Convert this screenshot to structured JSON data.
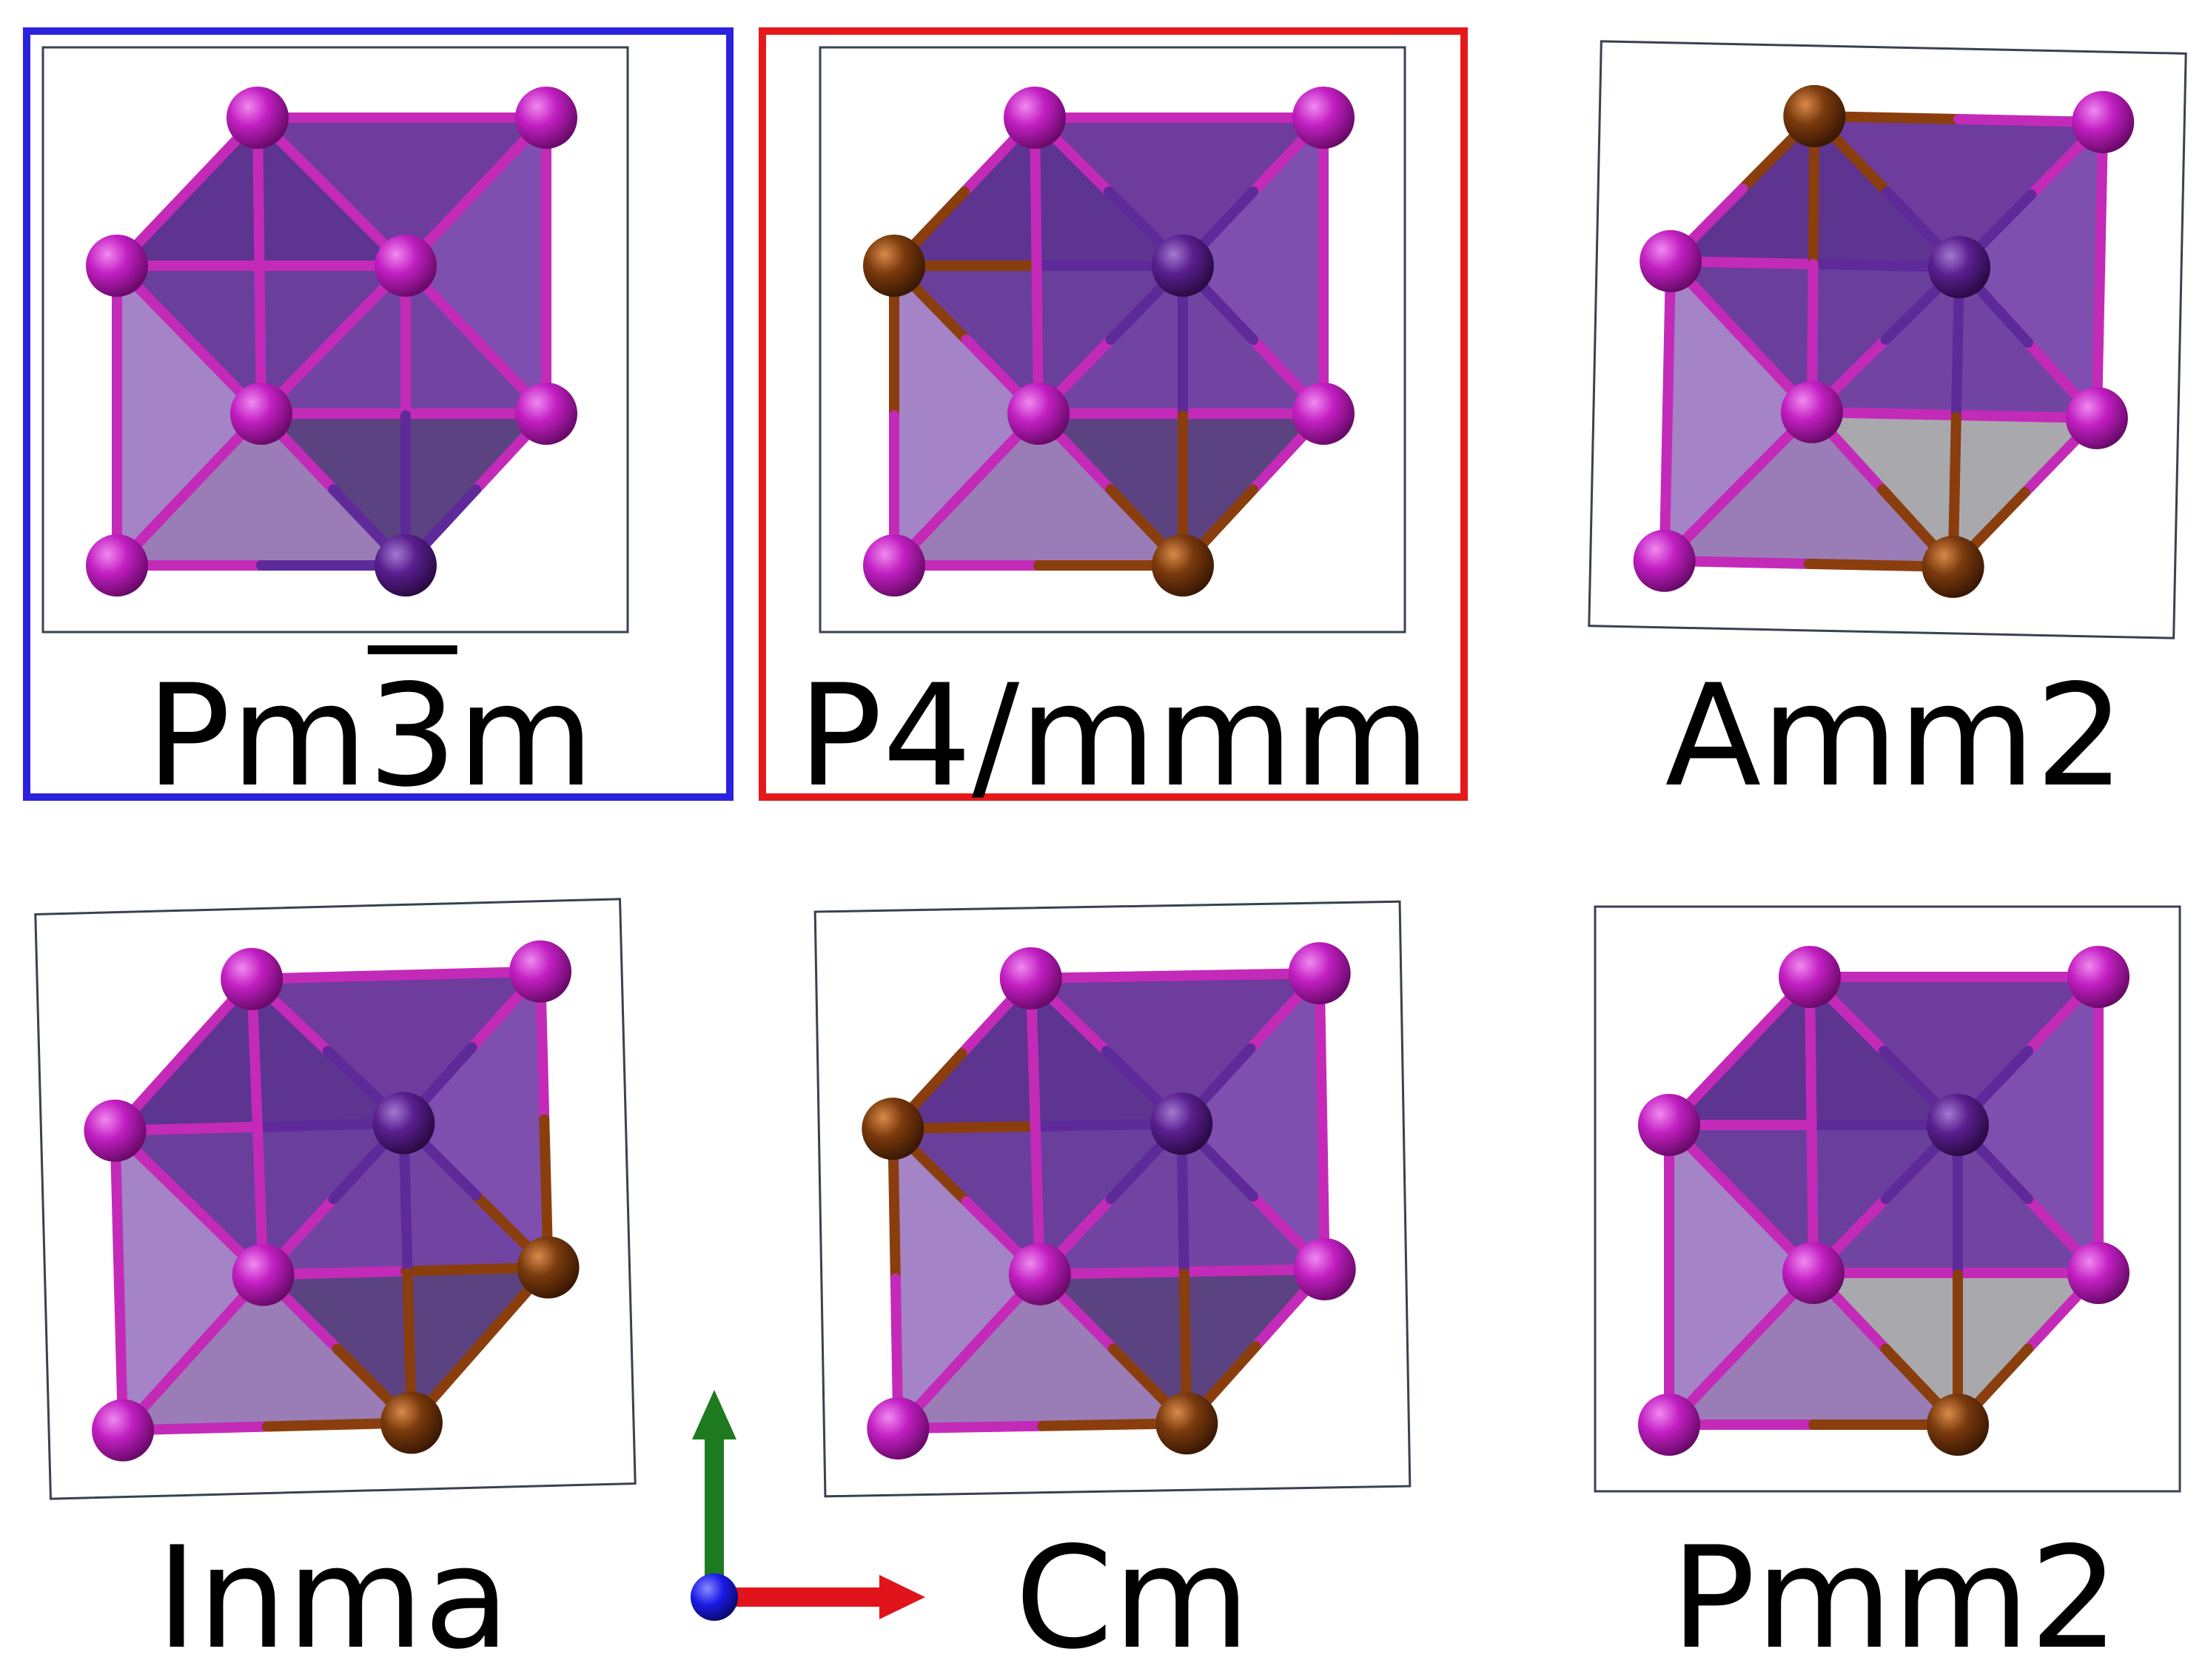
{
  "figure": {
    "panels": [
      {
        "id": "pm3m",
        "name": "Pm3m",
        "highlight": "#2b22e0",
        "name_parts": {
          "before": "Pm",
          "bar": "3",
          "after": "m"
        },
        "atoms": [
          "violet",
          "violet",
          "violet",
          "violet",
          "violet",
          "violet",
          "violet",
          "indigo"
        ]
      },
      {
        "id": "p4mmm",
        "name": "P4/mmm",
        "highlight": "#e5191b",
        "atoms": [
          "violet",
          "violet",
          "brown",
          "violet",
          "violet",
          "violet",
          "indigo",
          "brown"
        ]
      },
      {
        "id": "amm2",
        "name": "Amm2",
        "highlight": null,
        "atoms": [
          "brown",
          "violet",
          "violet",
          "violet",
          "violet",
          "violet",
          "indigo",
          "brown"
        ],
        "gray_face": true
      },
      {
        "id": "inma",
        "name": "Inma",
        "highlight": null,
        "atoms": [
          "violet",
          "violet",
          "violet",
          "violet",
          "brown",
          "violet",
          "indigo",
          "brown"
        ]
      },
      {
        "id": "cm",
        "name": "Cm",
        "highlight": null,
        "atoms": [
          "violet",
          "violet",
          "brown",
          "violet",
          "violet",
          "violet",
          "indigo",
          "brown"
        ]
      },
      {
        "id": "pmm2",
        "name": "Pmm2",
        "highlight": null,
        "atoms": [
          "violet",
          "violet",
          "violet",
          "violet",
          "violet",
          "violet",
          "indigo",
          "brown"
        ],
        "gray_face": true
      }
    ],
    "axes": {
      "vertical_color": "#1e7a1e",
      "horizontal_color": "#e0141a",
      "origin_color": "#1a1ae6"
    }
  },
  "colors": {
    "violet": "#b01cb0",
    "indigo": "#5a1f8f",
    "brown": "#7a3a0c",
    "polyhedron": "#7a4aa8",
    "frame": "#3a4150"
  }
}
